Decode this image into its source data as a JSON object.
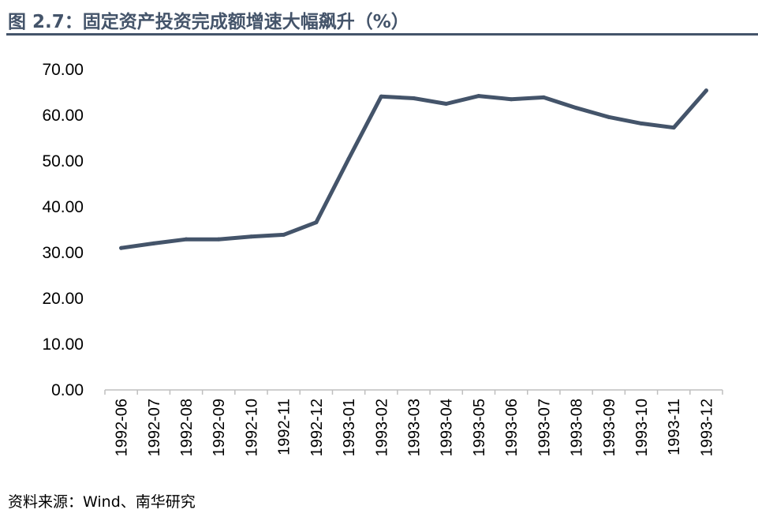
{
  "figure": {
    "title": "图 2.7：固定资产投资完成额增速大幅飙升（%）",
    "source": "资料来源：Wind、南华研究"
  },
  "chart_data": {
    "type": "line",
    "categories": [
      "1992-06",
      "1992-07",
      "1992-08",
      "1992-09",
      "1992-10",
      "1992-11",
      "1992-12",
      "1993-01",
      "1993-02",
      "1993-03",
      "1993-04",
      "1993-05",
      "1993-06",
      "1993-07",
      "1993-08",
      "1993-09",
      "1993-10",
      "1993-11",
      "1993-12"
    ],
    "series": [
      {
        "values": [
          31.0,
          32.0,
          32.9,
          32.9,
          33.5,
          33.9,
          36.6,
          50.5,
          64.1,
          63.7,
          62.5,
          64.2,
          63.5,
          63.9,
          61.6,
          59.6,
          58.2,
          57.3,
          65.4
        ]
      }
    ],
    "ylim": [
      0,
      70
    ],
    "yticks": [
      0,
      10,
      20,
      30,
      40,
      50,
      60,
      70
    ],
    "ytick_labels": [
      "0.00",
      "10.00",
      "20.00",
      "30.00",
      "40.00",
      "50.00",
      "60.00",
      "70.00"
    ],
    "line_color": "#44546a",
    "grid": false,
    "legend": "none"
  }
}
